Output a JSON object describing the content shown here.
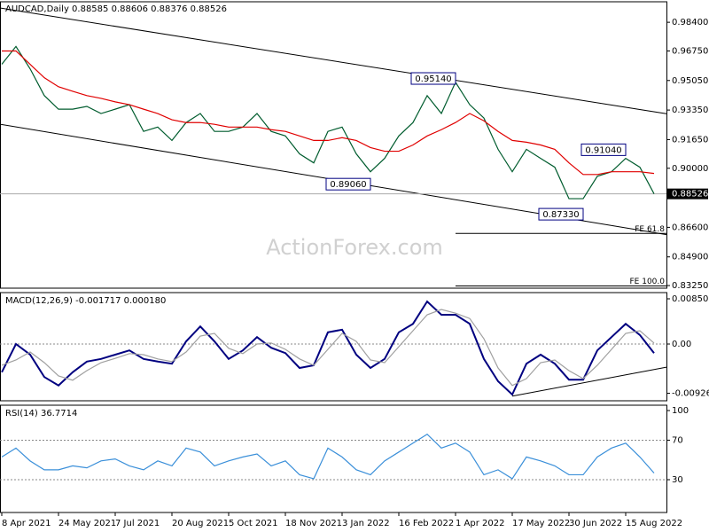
{
  "header": "AUDCAD,Daily  0.88585 0.88606 0.88376 0.88526",
  "watermark": "ActionForex.com",
  "categories": [
    "8 Apr 2021",
    null,
    null,
    null,
    "24 May 2021",
    null,
    null,
    null,
    "7 Jul 2021",
    null,
    null,
    null,
    "20 Aug 2021",
    null,
    null,
    null,
    "5 Oct 2021",
    null,
    null,
    null,
    "18 Nov 2021",
    null,
    null,
    null,
    "3 Jan 2022",
    null,
    null,
    null,
    "16 Feb 2022",
    null,
    null,
    null,
    "1 Apr 2022",
    null,
    null,
    null,
    "17 May 2022",
    null,
    null,
    null,
    "30 Jun 2022",
    null,
    null,
    null,
    "15 Aug 2022",
    null,
    null
  ],
  "chart_data": [
    {
      "type": "line",
      "ylim": [
        0.831,
        0.9958
      ],
      "yticks": [
        {
          "value": 0.984,
          "label": "0.98400"
        },
        {
          "value": 0.9675,
          "label": "0.96750"
        },
        {
          "value": 0.9505,
          "label": "0.95050"
        },
        {
          "value": 0.9335,
          "label": "0.93350"
        },
        {
          "value": 0.9165,
          "label": "0.91650"
        },
        {
          "value": 0.9,
          "label": "0.90000"
        },
        {
          "value": 0.866,
          "label": "0.86600"
        },
        {
          "value": 0.849,
          "label": "0.84900"
        },
        {
          "value": 0.8325,
          "label": "0.83250"
        }
      ],
      "current": {
        "value": 0.88526,
        "label": "0.88526"
      },
      "series": [
        {
          "color": "#005c2e",
          "values": [
            0.9598,
            0.9701,
            0.9572,
            0.9418,
            0.934,
            0.934,
            0.9356,
            0.9315,
            0.934,
            0.9366,
            0.9212,
            0.9237,
            0.916,
            0.9263,
            0.9315,
            0.9212,
            0.9212,
            0.9237,
            0.9315,
            0.9212,
            0.9186,
            0.9083,
            0.9031,
            0.9212,
            0.9237,
            0.9083,
            0.898,
            0.9057,
            0.9186,
            0.9263,
            0.9418,
            0.9315,
            0.9495,
            0.9366,
            0.9289,
            0.9109,
            0.898,
            0.9109,
            0.9057,
            0.9006,
            0.8825,
            0.8825,
            0.8954,
            0.898,
            0.9057,
            0.9006,
            0.8853
          ]
        },
        {
          "color": "#e00000",
          "values": [
            0.9675,
            0.9675,
            0.9598,
            0.9521,
            0.9469,
            0.9443,
            0.9418,
            0.9402,
            0.9382,
            0.9366,
            0.934,
            0.9315,
            0.9279,
            0.9263,
            0.9263,
            0.9253,
            0.9237,
            0.9237,
            0.9237,
            0.9222,
            0.9212,
            0.9186,
            0.916,
            0.916,
            0.9176,
            0.916,
            0.9119,
            0.9098,
            0.9098,
            0.9134,
            0.9186,
            0.9222,
            0.9263,
            0.9315,
            0.9273,
            0.9212,
            0.916,
            0.915,
            0.9134,
            0.9109,
            0.9031,
            0.8964,
            0.8964,
            0.898,
            0.898,
            0.898,
            0.897
          ]
        }
      ],
      "trendlines": [
        {
          "values": [
            0.9922,
            0.9325
          ]
        },
        {
          "values": [
            0.9253,
            0.863
          ]
        }
      ],
      "levels": [
        {
          "label": "FE 61.8",
          "value": 0.8625,
          "at": 32
        },
        {
          "label": "FE 100.0",
          "value": 0.8323,
          "at": 32
        }
      ],
      "annotations": [
        {
          "label": "0.95140",
          "value": 0.9514,
          "at": 32
        },
        {
          "label": "0.89060",
          "value": 0.8906,
          "at": 26
        },
        {
          "label": "0.87330",
          "value": 0.8733,
          "at": 41
        },
        {
          "label": "0.91040",
          "value": 0.9104,
          "at": 44
        }
      ]
    },
    {
      "type": "line",
      "title": "MACD(12,26,9) -0.001717 0.000180",
      "ylim": [
        -0.01067,
        0.00967
      ],
      "yticks": [
        {
          "value": 0.008503,
          "label": "0.008503"
        },
        {
          "value": 0,
          "label": "0.00"
        },
        {
          "value": -0.009262,
          "label": "-0.009262"
        }
      ],
      "zero_line": 0,
      "series": [
        {
          "color": "#000080",
          "values": [
            -0.0053,
            0.0,
            -0.002,
            -0.0062,
            -0.0078,
            -0.0053,
            -0.0033,
            -0.0028,
            -0.002,
            -0.0012,
            -0.0028,
            -0.0033,
            -0.0037,
            0.0005,
            0.0033,
            0.0005,
            -0.0028,
            -0.0012,
            0.0013,
            -0.0007,
            -0.0017,
            -0.0045,
            -0.004,
            0.0022,
            0.0027,
            -0.002,
            -0.0045,
            -0.0028,
            0.0022,
            0.0038,
            0.008,
            0.0055,
            0.0055,
            0.0038,
            -0.0028,
            -0.007,
            -0.0095,
            -0.0037,
            -0.002,
            -0.0037,
            -0.0067,
            -0.0067,
            -0.0012,
            0.0013,
            0.0038,
            0.0017,
            -0.001717
          ]
        },
        {
          "color": "#a0a0a0",
          "values": [
            -0.004,
            -0.003,
            -0.0015,
            -0.0035,
            -0.006,
            -0.0068,
            -0.005,
            -0.0035,
            -0.0027,
            -0.0018,
            -0.002,
            -0.0028,
            -0.0033,
            -0.0015,
            0.0015,
            0.002,
            -0.0008,
            -0.0018,
            0.0,
            0.0002,
            -0.001,
            -0.0028,
            -0.004,
            -0.001,
            0.002,
            0.0005,
            -0.003,
            -0.0035,
            -0.0005,
            0.0025,
            0.0055,
            0.0065,
            0.0058,
            0.0048,
            0.001,
            -0.0045,
            -0.0078,
            -0.0065,
            -0.0035,
            -0.003,
            -0.005,
            -0.0065,
            -0.004,
            -0.001,
            0.002,
            0.0025,
            0.00018
          ]
        }
      ],
      "trendlines": [
        {
          "start": 36,
          "values": [
            -0.0098,
            -0.0048
          ]
        }
      ]
    },
    {
      "type": "line",
      "title": "RSI(14) 36.7714",
      "ylim": [
        -3.2,
        105.4
      ],
      "yticks": [
        100,
        70,
        30
      ],
      "dashed_levels": [
        70,
        30
      ],
      "series": [
        {
          "color": "#3a8fd9",
          "values": [
            53,
            62,
            49,
            40,
            40,
            44,
            42,
            49,
            51,
            44,
            40,
            49,
            44,
            62,
            58,
            44,
            49,
            53,
            56,
            44,
            49,
            35,
            31,
            62,
            53,
            40,
            35,
            49,
            58,
            67,
            76,
            62,
            67,
            58,
            35,
            40,
            31,
            53,
            49,
            44,
            35,
            35,
            53,
            62,
            67,
            53,
            36.7714
          ]
        }
      ]
    }
  ]
}
